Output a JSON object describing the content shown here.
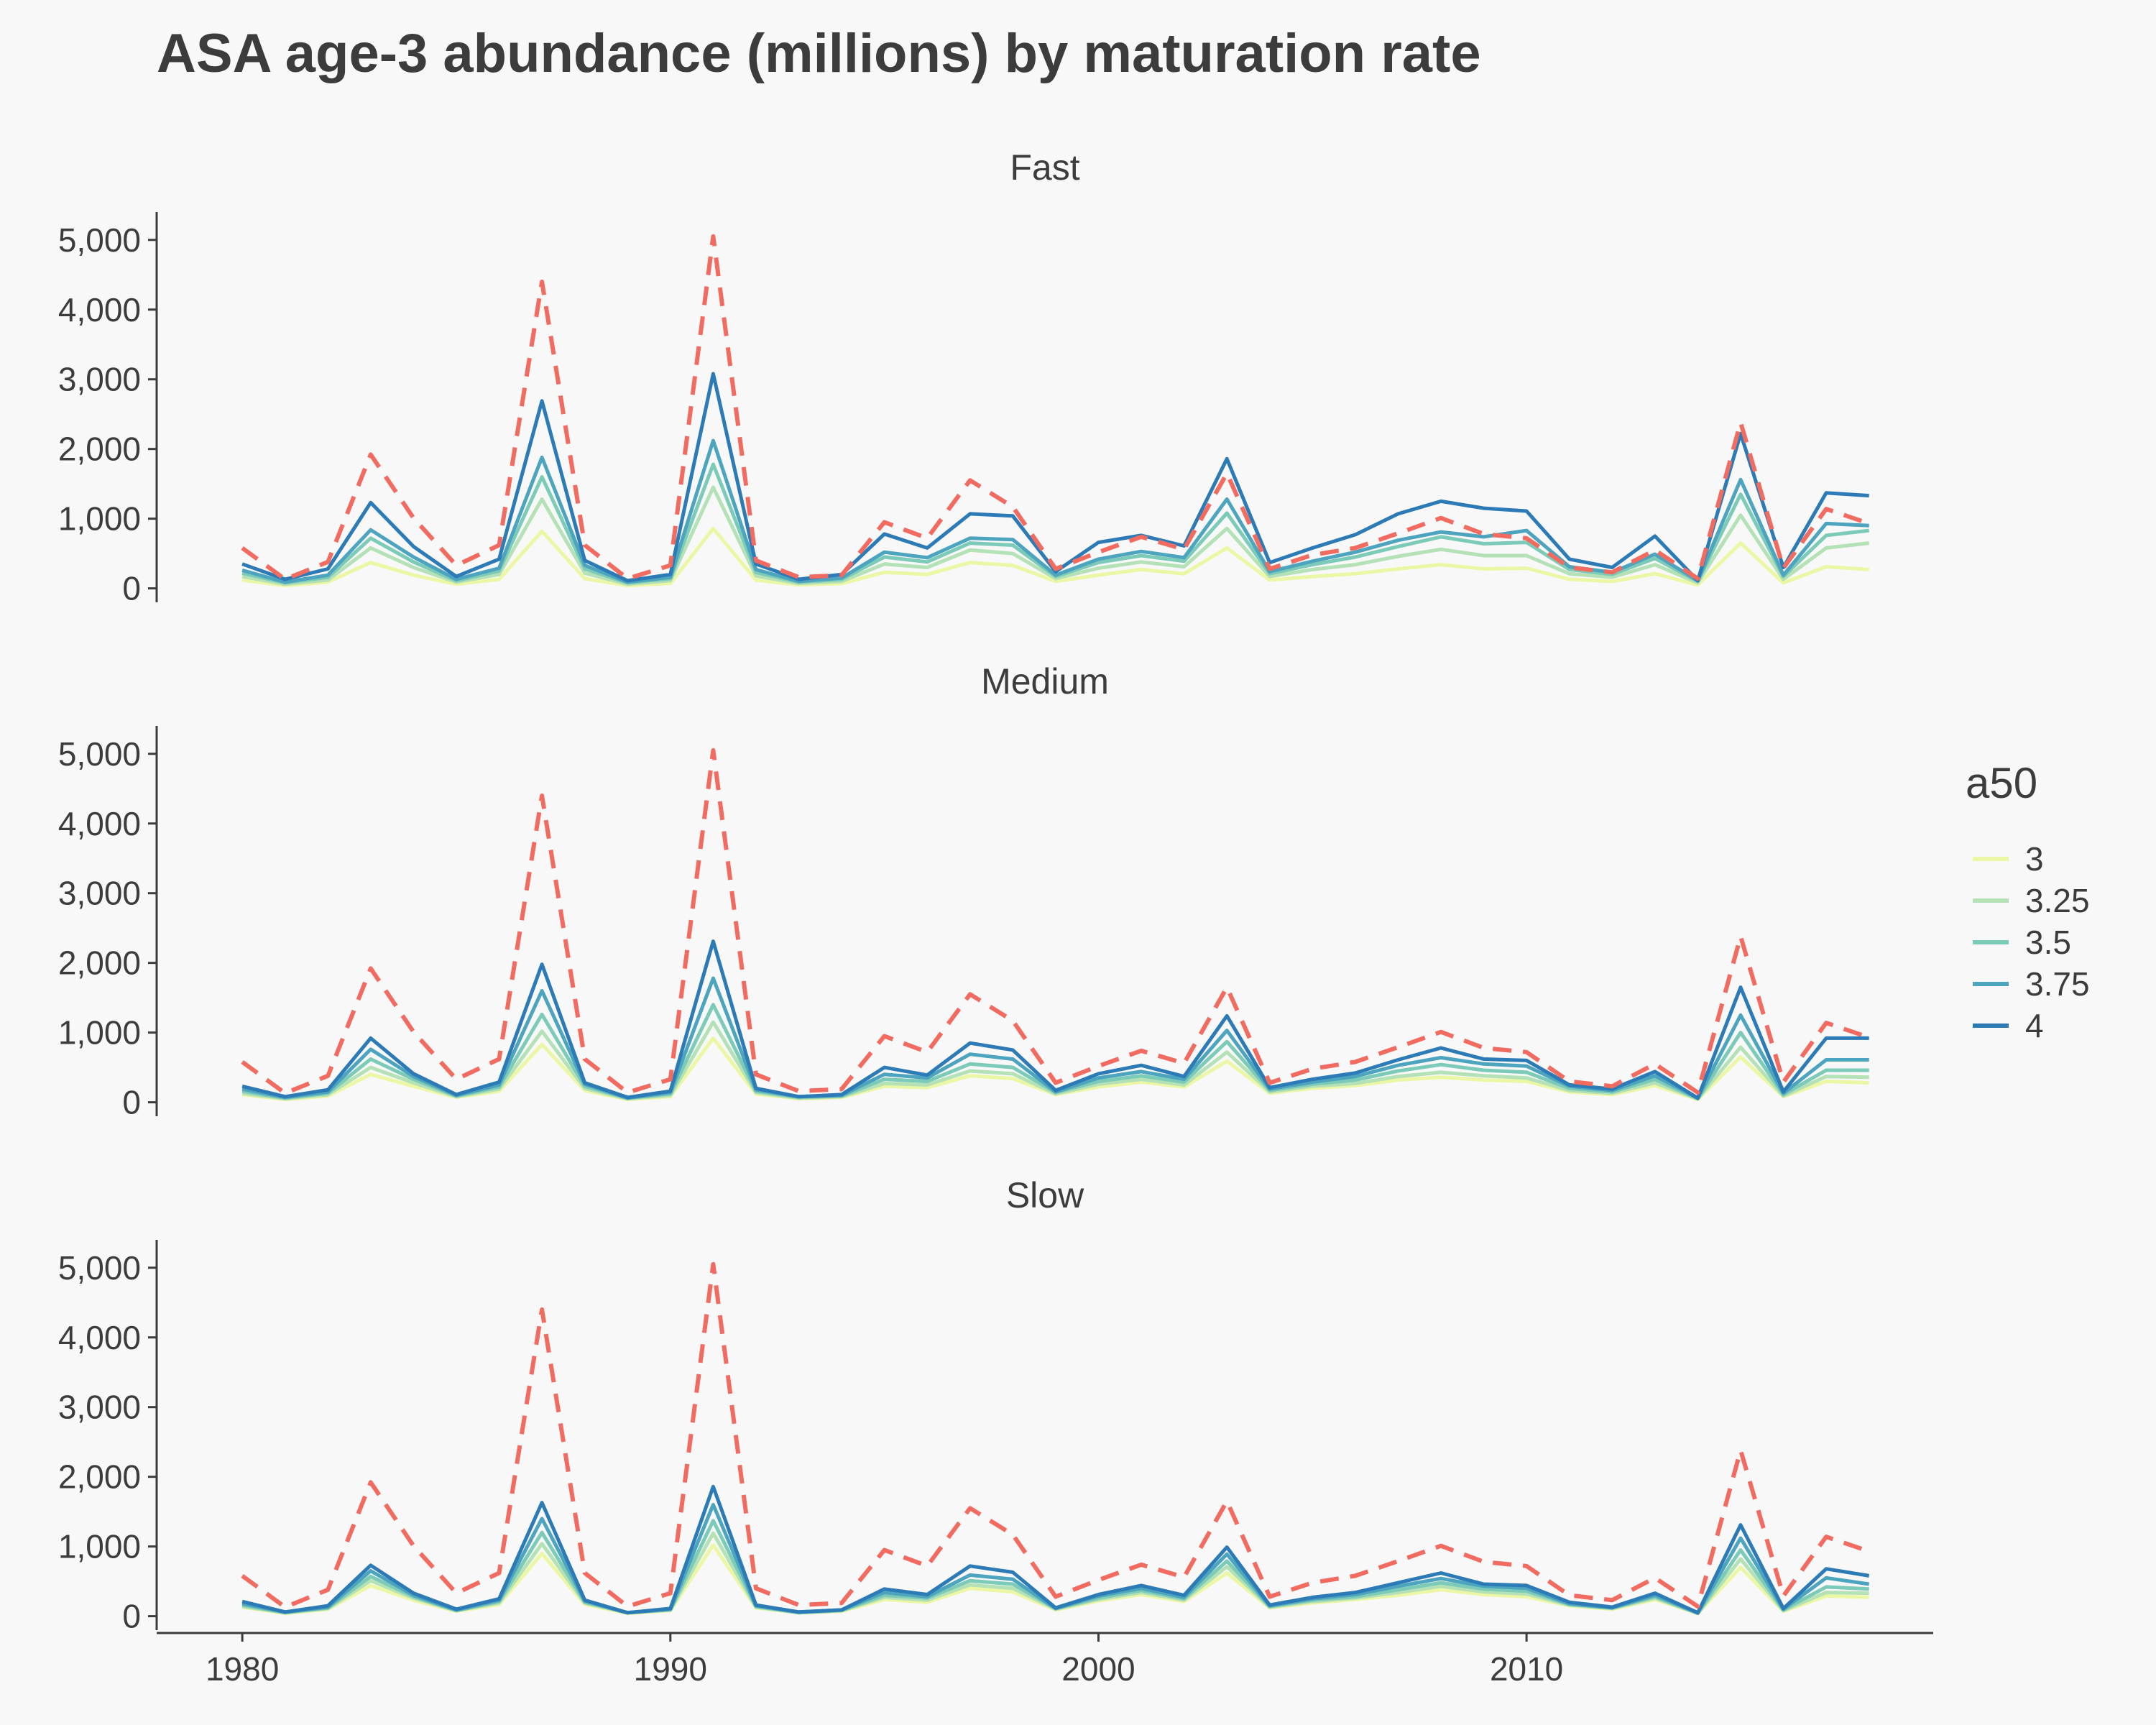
{
  "chart_data": {
    "type": "line",
    "title": "ASA age-3 abundance (millions) by maturation rate",
    "xlabel": "",
    "ylabel": "",
    "xlim": [
      1978,
      2019.5
    ],
    "ylim": [
      -200,
      5400
    ],
    "x_ticks": [
      "1980",
      "1990",
      "2000",
      "2010"
    ],
    "y_ticks": [
      "0",
      "1,000",
      "2,000",
      "3,000",
      "4,000",
      "5,000"
    ],
    "grid": false,
    "legend": {
      "title": "a50",
      "position": "right",
      "entries": [
        "3",
        "3.25",
        "3.5",
        "3.75",
        "4"
      ]
    },
    "colors": {
      "series": [
        "#ecf7a6",
        "#b4e1b6",
        "#7ccbb8",
        "#4da4be",
        "#2c7bb6"
      ],
      "reference": "#f26b61"
    },
    "x": [
      1980,
      1981,
      1982,
      1983,
      1984,
      1985,
      1986,
      1987,
      1988,
      1989,
      1990,
      1991,
      1992,
      1993,
      1994,
      1995,
      1996,
      1997,
      1998,
      1999,
      2000,
      2001,
      2002,
      2003,
      2004,
      2005,
      2006,
      2007,
      2008,
      2009,
      2010,
      2011,
      2012,
      2013,
      2014,
      2015,
      2016,
      2017,
      2018
    ],
    "reference": [
      580,
      130,
      380,
      1920,
      1010,
      330,
      620,
      4400,
      620,
      140,
      330,
      5050,
      400,
      160,
      190,
      950,
      720,
      1550,
      1170,
      280,
      520,
      740,
      560,
      1650,
      280,
      480,
      580,
      790,
      1010,
      780,
      720,
      300,
      230,
      550,
      140,
      2380,
      290,
      1140,
      930
    ],
    "panels": [
      {
        "strip": "Fast",
        "series": [
          {
            "name": "3",
            "values": [
              120,
              40,
              90,
              370,
              190,
              60,
              130,
              820,
              140,
              40,
              70,
              860,
              120,
              50,
              70,
              230,
              200,
              370,
              330,
              100,
              190,
              270,
              210,
              580,
              120,
              170,
              210,
              280,
              340,
              280,
              290,
              130,
              100,
              210,
              50,
              650,
              80,
              310,
              270
            ]
          },
          {
            "name": "3.25",
            "values": [
              170,
              60,
              120,
              580,
              300,
              90,
              200,
              1280,
              220,
              60,
              110,
              1450,
              180,
              70,
              100,
              350,
              300,
              550,
              500,
              140,
              290,
              380,
              310,
              860,
              170,
              270,
              340,
              460,
              560,
              470,
              470,
              210,
              160,
              340,
              80,
              1050,
              130,
              580,
              650
            ]
          },
          {
            "name": "3.5",
            "values": [
              220,
              80,
              160,
              720,
              380,
              110,
              250,
              1600,
              280,
              80,
              140,
              1780,
              230,
              90,
              130,
              450,
              380,
              650,
              620,
              170,
              370,
              470,
              390,
              1080,
              210,
              340,
              450,
              600,
              740,
              640,
              660,
              270,
              200,
              430,
              100,
              1350,
              170,
              760,
              830
            ]
          },
          {
            "name": "3.75",
            "values": [
              260,
              90,
              190,
              840,
              450,
              130,
              290,
              1880,
              330,
              90,
              160,
              2120,
              270,
              100,
              150,
              520,
              440,
              720,
              700,
              190,
              420,
              530,
              440,
              1280,
              240,
              390,
              520,
              690,
              810,
              740,
              830,
              310,
              230,
              490,
              110,
              1560,
              190,
              930,
              900
            ]
          },
          {
            "name": "4",
            "values": [
              350,
              130,
              280,
              1230,
              600,
              170,
              420,
              2690,
              400,
              110,
              200,
              3080,
              350,
              130,
              200,
              780,
              580,
              1070,
              1040,
              240,
              660,
              760,
              610,
              1860,
              370,
              580,
              770,
              1070,
              1250,
              1150,
              1110,
              420,
              300,
              750,
              110,
              2220,
              300,
              1370,
              1330
            ]
          }
        ]
      },
      {
        "strip": "Medium",
        "series": [
          {
            "name": "3",
            "values": [
              110,
              40,
              90,
              400,
              230,
              70,
              160,
              830,
              170,
              40,
              80,
              920,
              120,
              50,
              70,
              230,
              210,
              380,
              340,
              110,
              220,
              290,
              220,
              590,
              130,
              200,
              240,
              320,
              360,
              320,
              300,
              150,
              110,
              240,
              40,
              650,
              80,
              300,
              280
            ]
          },
          {
            "name": "3.25",
            "values": [
              130,
              50,
              110,
              500,
              280,
              80,
              190,
              1020,
              200,
              50,
              100,
              1150,
              140,
              60,
              80,
              270,
              250,
              450,
              410,
              120,
              260,
              330,
              250,
              720,
              150,
              230,
              270,
              370,
              430,
              380,
              350,
              170,
              130,
              280,
              50,
              790,
              90,
              370,
              360
            ]
          },
          {
            "name": "3.5",
            "values": [
              160,
              60,
              130,
              620,
              330,
              90,
              220,
              1260,
              230,
              60,
              120,
              1400,
              160,
              70,
              90,
              330,
              300,
              550,
              500,
              140,
              300,
              380,
              290,
              870,
              170,
              260,
              320,
              450,
              540,
              460,
              430,
              200,
              150,
              330,
              50,
              1000,
              110,
              460,
              460
            ]
          },
          {
            "name": "3.75",
            "values": [
              190,
              70,
              150,
              760,
              370,
              100,
              250,
              1600,
              260,
              60,
              140,
              1780,
              180,
              80,
              100,
              400,
              350,
              690,
              620,
              150,
              350,
              440,
              330,
              1030,
              190,
              290,
              370,
              530,
              640,
              550,
              520,
              230,
              170,
              380,
              60,
              1250,
              130,
              610,
              610
            ]
          },
          {
            "name": "4",
            "values": [
              230,
              80,
              180,
              920,
              410,
              110,
              290,
              1980,
              280,
              70,
              160,
              2310,
              200,
              80,
              110,
              500,
              390,
              850,
              750,
              170,
              410,
              530,
              370,
              1240,
              210,
              330,
              420,
              610,
              780,
              620,
              600,
              250,
              190,
              440,
              60,
              1650,
              150,
              920,
              920
            ]
          }
        ]
      },
      {
        "strip": "Slow",
        "series": [
          {
            "name": "3",
            "values": [
              130,
              40,
              100,
              440,
              230,
              70,
              170,
              900,
              170,
              40,
              80,
              1020,
              120,
              50,
              70,
              240,
              200,
              400,
              350,
              90,
              220,
              310,
              210,
              620,
              120,
              190,
              240,
              300,
              380,
              310,
              280,
              150,
              100,
              240,
              40,
              700,
              70,
              290,
              270
            ]
          },
          {
            "name": "3.25",
            "values": [
              140,
              50,
              110,
              510,
              260,
              80,
              190,
              1040,
              190,
              50,
              90,
              1190,
              130,
              50,
              80,
              270,
              230,
              450,
              400,
              100,
              240,
              340,
              230,
              710,
              130,
              210,
              260,
              340,
              430,
              350,
              320,
              160,
              110,
              260,
              40,
              820,
              80,
              340,
              330
            ]
          },
          {
            "name": "3.5",
            "values": [
              160,
              50,
              120,
              570,
              280,
              80,
              210,
              1200,
              200,
              50,
              90,
              1370,
              140,
              50,
              80,
              300,
              260,
              510,
              460,
              110,
              260,
              370,
              250,
              790,
              140,
              230,
              280,
              380,
              480,
              390,
              360,
              170,
              120,
              280,
              40,
              950,
              90,
              420,
              390
            ]
          },
          {
            "name": "3.75",
            "values": [
              180,
              60,
              130,
              650,
              300,
              90,
              230,
              1400,
              220,
              50,
              100,
              1600,
              150,
              60,
              90,
              340,
              280,
              590,
              530,
              110,
              290,
              400,
              270,
              890,
              150,
              250,
              310,
              430,
              540,
              430,
              400,
              180,
              120,
              300,
              50,
              1120,
              100,
              550,
              460
            ]
          },
          {
            "name": "4",
            "values": [
              210,
              60,
              150,
              730,
              330,
              100,
              250,
              1630,
              230,
              50,
              110,
              1860,
              160,
              60,
              90,
              390,
              310,
              720,
              630,
              120,
              310,
              440,
              300,
              990,
              160,
              270,
              340,
              480,
              620,
              460,
              440,
              200,
              130,
              330,
              50,
              1310,
              110,
              680,
              580
            ]
          }
        ]
      }
    ]
  }
}
